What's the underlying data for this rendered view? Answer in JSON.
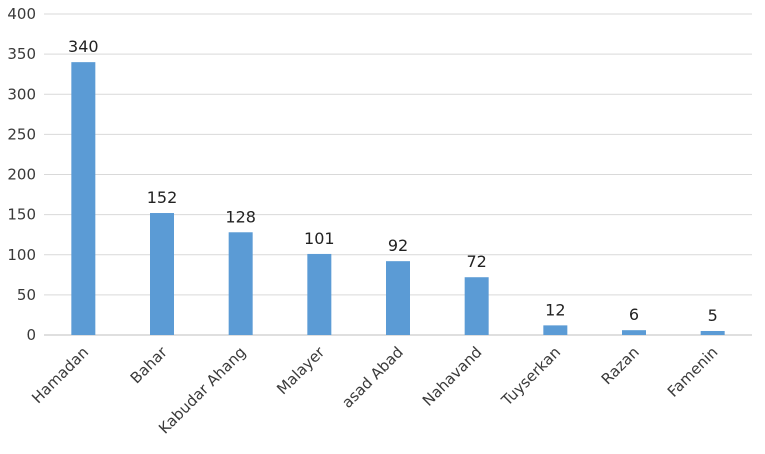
{
  "chart_data": {
    "type": "bar",
    "categories": [
      "Hamadan",
      "Bahar",
      "Kabudar Ahang",
      "Malayer",
      "asad Abad",
      "Nahavand",
      "Tuyserkan",
      "Razan",
      "Famenin"
    ],
    "values": [
      340,
      152,
      128,
      101,
      92,
      72,
      12,
      6,
      5
    ],
    "data_labels": [
      "340",
      "152",
      "128",
      "101",
      "92",
      "72",
      "12",
      "6",
      "5"
    ],
    "yticks": [
      0,
      50,
      100,
      150,
      200,
      250,
      300,
      350,
      400
    ],
    "ytick_labels": [
      "0",
      "50",
      "100",
      "150",
      "200",
      "250",
      "300",
      "350",
      "400"
    ],
    "ylim": [
      0,
      400
    ],
    "grid": true,
    "legend": "none",
    "bar_color": "#5b9bd5"
  }
}
